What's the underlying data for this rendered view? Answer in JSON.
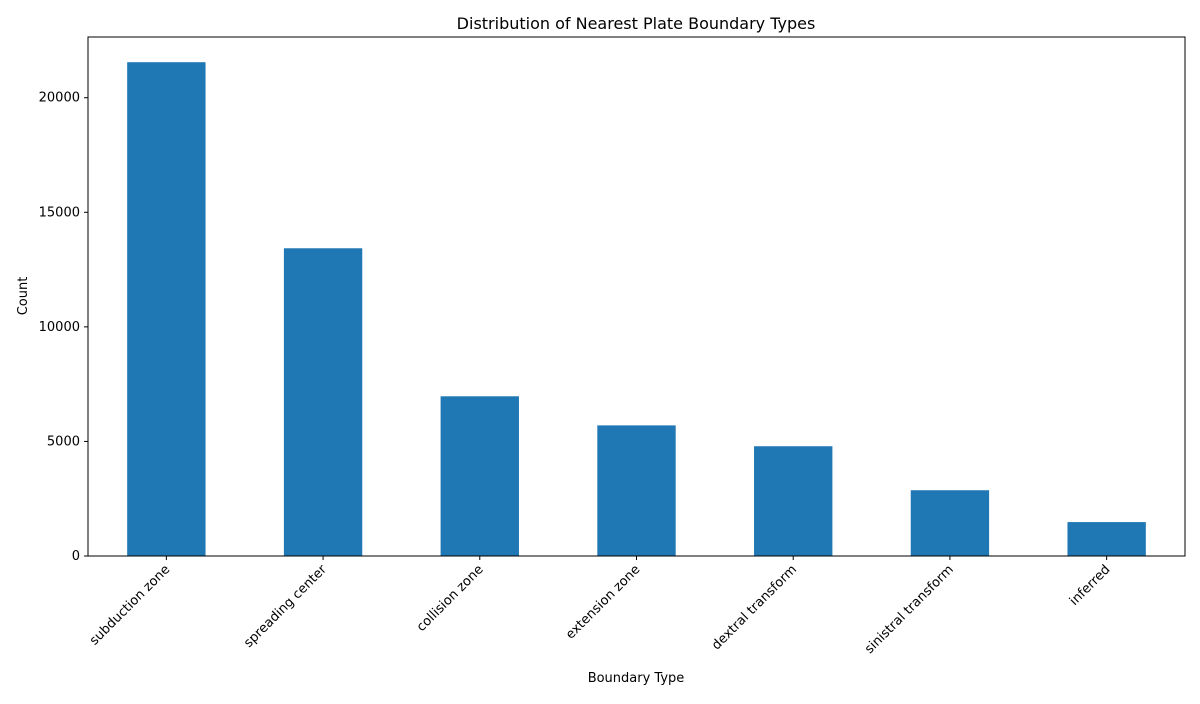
{
  "chart_data": {
    "type": "bar",
    "title": "Distribution of Nearest Plate Boundary Types",
    "xlabel": "Boundary Type",
    "ylabel": "Count",
    "categories": [
      "subduction zone",
      "spreading center",
      "collision zone",
      "extension zone",
      "dextral transform",
      "sinistral transform",
      "inferred"
    ],
    "values": [
      21550,
      13430,
      6970,
      5700,
      4790,
      2870,
      1480
    ],
    "ylim": [
      0,
      22650
    ],
    "yticks": [
      0,
      5000,
      10000,
      15000,
      20000
    ],
    "ytick_labels": [
      "0",
      "5000",
      "10000",
      "15000",
      "20000"
    ],
    "bar_color": "#1f77b4",
    "grid": false,
    "legend": "none"
  }
}
